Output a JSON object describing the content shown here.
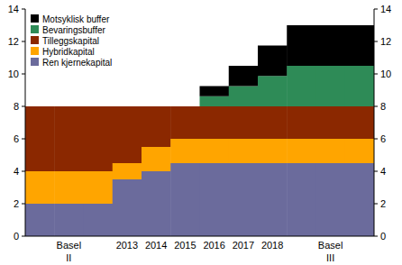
{
  "chart_data": {
    "type": "bar",
    "stacked": true,
    "grid": false,
    "legend": "upper left",
    "categories": [
      null,
      "Basel II",
      null,
      "2013",
      "2014",
      "2015",
      "2016",
      "2017",
      "2018",
      null,
      "Basel III",
      null
    ],
    "series": [
      {
        "name": "Ren kjernekapital",
        "color": "#6b6b9c",
        "values": [
          2,
          2,
          2,
          3.5,
          4,
          4.5,
          4.5,
          4.5,
          4.5,
          4.5,
          4.5,
          4.5
        ]
      },
      {
        "name": "Hybridkapital",
        "color": "#ffa500",
        "values": [
          2,
          2,
          2,
          1,
          1.5,
          1.5,
          1.5,
          1.5,
          1.5,
          1.5,
          1.5,
          1.5
        ]
      },
      {
        "name": "Tilleggskapital",
        "color": "#8b2800",
        "values": [
          4,
          4,
          4,
          3.5,
          2.5,
          2,
          2,
          2,
          2,
          2,
          2,
          2
        ]
      },
      {
        "name": "Bevaringsbuffer",
        "color": "#2e8b57",
        "values": [
          0,
          0,
          0,
          0,
          0,
          0,
          0.625,
          1.25,
          1.875,
          2.5,
          2.5,
          2.5
        ]
      },
      {
        "name": "Motsyklisk buffer",
        "color": "#000000",
        "values": [
          0,
          0,
          0,
          0,
          0,
          0,
          0.625,
          1.25,
          1.875,
          2.5,
          2.5,
          2.5
        ]
      }
    ],
    "ylim": [
      0,
      14
    ],
    "yticks": [
      0,
      2,
      4,
      6,
      8,
      10,
      12,
      14
    ]
  }
}
